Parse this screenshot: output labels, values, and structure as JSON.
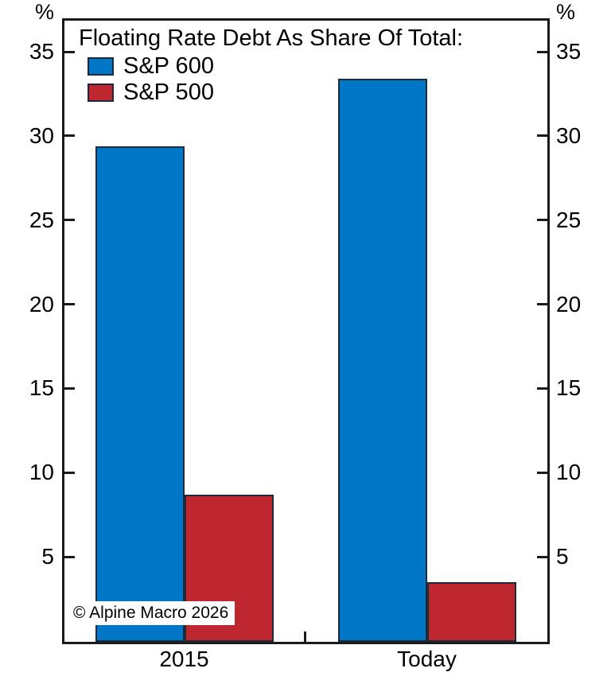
{
  "chart_data": {
    "type": "bar",
    "title": "Floating Rate Debt As Share Of Total:",
    "categories": [
      "2015",
      "Today"
    ],
    "series": [
      {
        "name": "S&P 600",
        "color": "#0076C6",
        "values": [
          29.4,
          33.4
        ]
      },
      {
        "name": "S&P 500",
        "color": "#BE2730",
        "values": [
          8.7,
          3.5
        ]
      }
    ],
    "ylim": [
      0,
      37
    ],
    "yticks": [
      5,
      10,
      15,
      20,
      25,
      30,
      35
    ],
    "y_unit_left": "%",
    "y_unit_right": "%",
    "axis_sides": "both",
    "grid": false,
    "legend_position": "top-left",
    "category_divider_tick": true
  },
  "annotations": {
    "copyright": "© Alpine Macro 2026"
  },
  "colors": {
    "axis": "#1a1a1a",
    "bar_outline": "#1c2a3a",
    "background": "#ffffff",
    "text": "#000000"
  }
}
